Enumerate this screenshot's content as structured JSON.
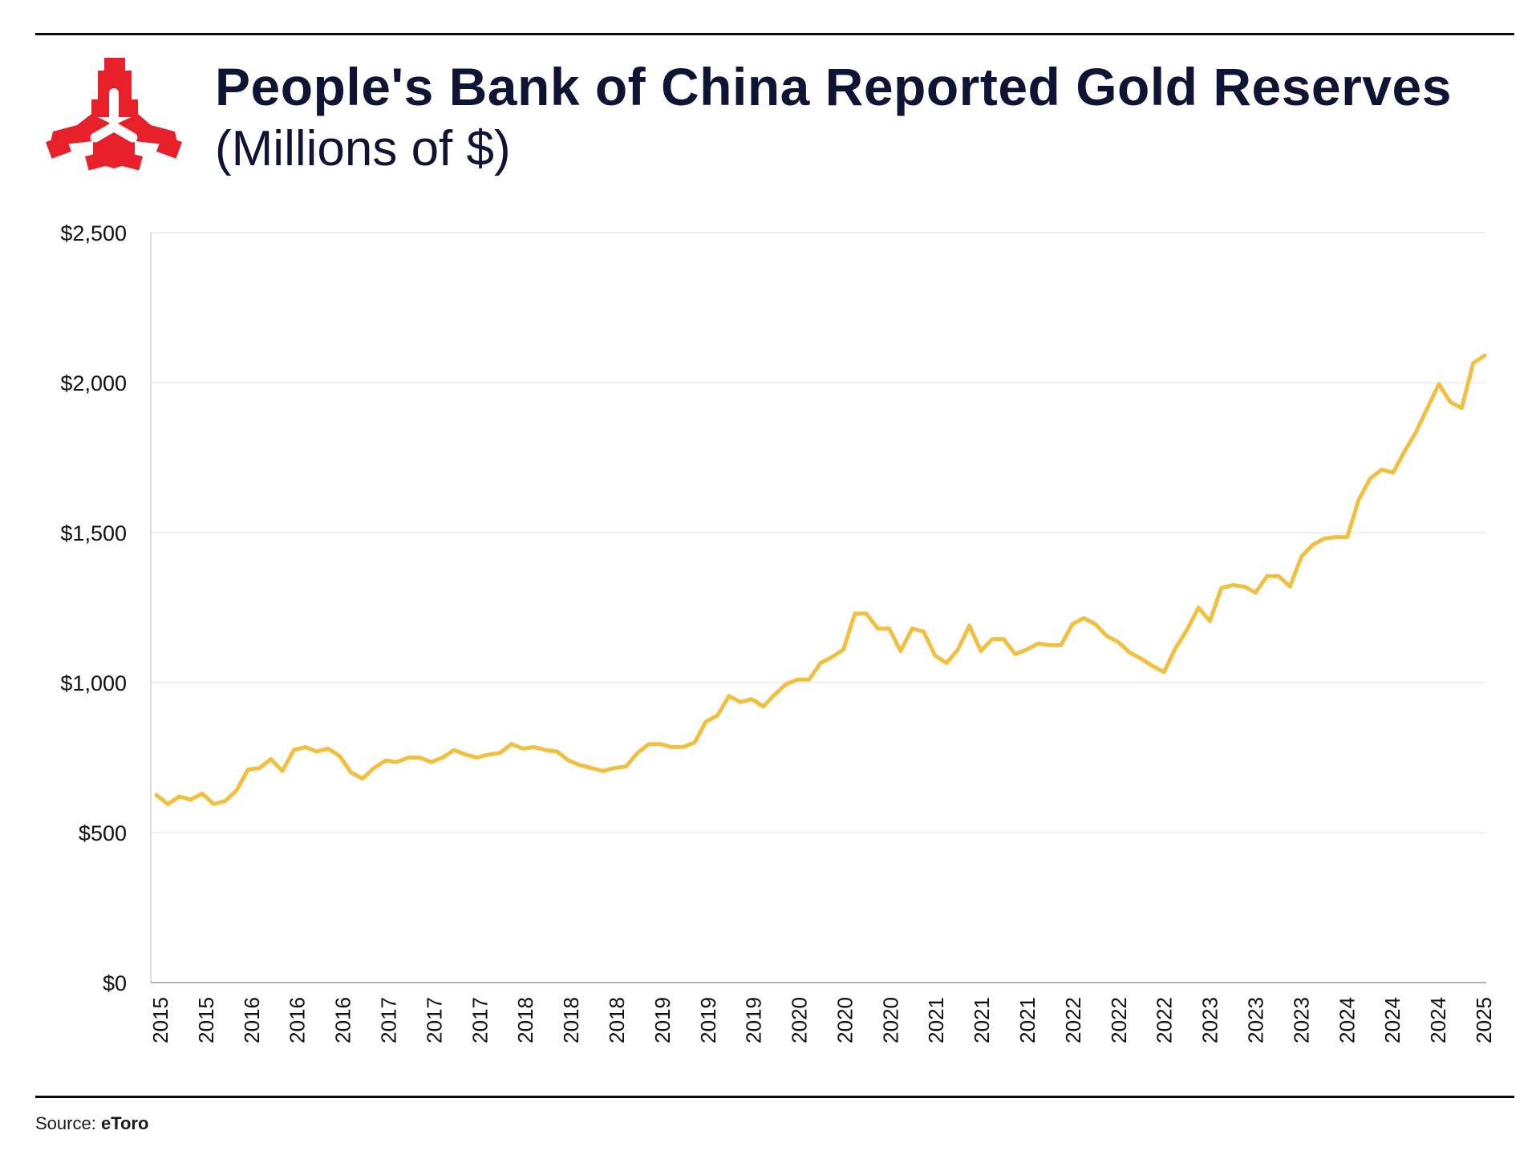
{
  "header": {
    "title": "People's Bank of China Reported Gold Reserves",
    "subtitle": "(Millions of $)"
  },
  "footer": {
    "source_label": "Source:",
    "source_name": "eToro"
  },
  "colors": {
    "line": "#f2c040",
    "logo": "#e8202a",
    "text": "#0f1435",
    "grid": "#e6e6e6"
  },
  "chart_data": {
    "type": "line",
    "title": "People's Bank of China Reported Gold Reserves",
    "subtitle": "(Millions of $)",
    "xlabel": "",
    "ylabel": "",
    "ylim": [
      0,
      2500
    ],
    "yticks": [
      0,
      500,
      1000,
      1500,
      2000,
      2500
    ],
    "ytick_labels": [
      "$0",
      "$500",
      "$1,000",
      "$1,500",
      "$2,000",
      "$2,500"
    ],
    "xtick_labels": [
      "2015",
      "2015",
      "2016",
      "2016",
      "2016",
      "2017",
      "2017",
      "2017",
      "2018",
      "2018",
      "2018",
      "2019",
      "2019",
      "2019",
      "2020",
      "2020",
      "2020",
      "2021",
      "2021",
      "2021",
      "2022",
      "2022",
      "2022",
      "2023",
      "2023",
      "2023",
      "2024",
      "2024",
      "2024",
      "2025"
    ],
    "grid": true,
    "legend": "none",
    "series": [
      {
        "values": [
          625,
          595,
          620,
          610,
          630,
          595,
          605,
          640,
          710,
          715,
          745,
          705,
          775,
          785,
          770,
          780,
          755,
          700,
          680,
          715,
          740,
          735,
          750,
          750,
          735,
          750,
          775,
          760,
          750,
          760,
          765,
          795,
          780,
          785,
          775,
          770,
          740,
          725,
          715,
          705,
          715,
          720,
          765,
          795,
          795,
          785,
          785,
          800,
          870,
          890,
          955,
          935,
          945,
          920,
          960,
          995,
          1010,
          1010,
          1065,
          1085,
          1110,
          1230,
          1230,
          1180,
          1180,
          1105,
          1180,
          1170,
          1090,
          1065,
          1110,
          1190,
          1105,
          1145,
          1145,
          1095,
          1110,
          1130,
          1125,
          1125,
          1195,
          1215,
          1195,
          1155,
          1135,
          1100,
          1080,
          1055,
          1035,
          1115,
          1175,
          1250,
          1205,
          1315,
          1325,
          1320,
          1300,
          1355,
          1355,
          1320,
          1420,
          1460,
          1480,
          1485,
          1485,
          1610,
          1680,
          1710,
          1700,
          1770,
          1835,
          1915,
          1995,
          1935,
          1915,
          2065,
          2090
        ]
      }
    ]
  }
}
